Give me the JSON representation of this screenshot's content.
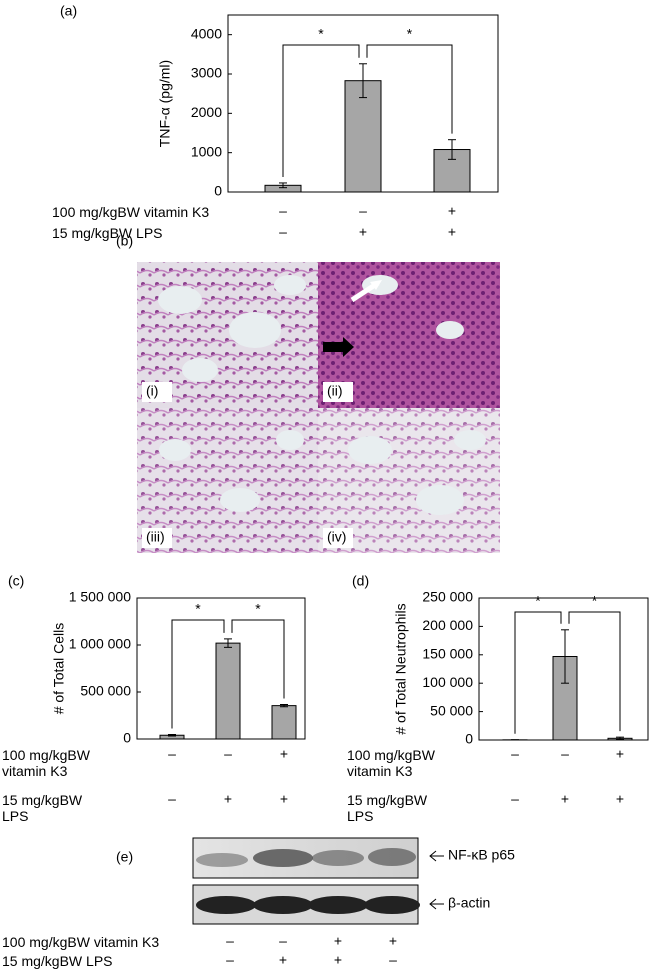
{
  "chart_data": [
    {
      "type": "bar",
      "panel": "(a)",
      "y_label": "TNF-α (pg/ml)",
      "color": "#a6a6a6",
      "values": [
        170,
        2830,
        1080
      ],
      "errors": [
        60,
        430,
        250
      ],
      "ylim": [
        0,
        4500
      ],
      "yticks": [
        0,
        1000,
        2000,
        3000,
        4000
      ],
      "annotations": [
        "*",
        "*"
      ],
      "treatments": [
        {
          "label": "100 mg/kgBW vitamin K3",
          "signs": [
            "–",
            "–",
            "+"
          ]
        },
        {
          "label": "15 mg/kgBW LPS",
          "signs": [
            "–",
            "+",
            "+"
          ]
        }
      ]
    },
    {
      "type": "bar",
      "panel": "(c)",
      "y_label": "# of Total Cells",
      "color": "#a6a6a6",
      "values": [
        40000,
        1020000,
        355000
      ],
      "errors": [
        8000,
        45000,
        12000
      ],
      "ylim": [
        0,
        1500000
      ],
      "yticks": [
        0,
        {
          "value": 500000,
          "label": "500 000"
        },
        {
          "value": 1000000,
          "label": "1 000 000"
        },
        {
          "value": 1500000,
          "label": "1 500 000"
        }
      ],
      "annotations": [
        "*",
        "*"
      ],
      "treatments": [
        {
          "label": "100 mg/kgBW vitamin K3",
          "signs": [
            "–",
            "–",
            "+"
          ]
        },
        {
          "label": "15 mg/kgBW LPS",
          "signs": [
            "–",
            "+",
            "+"
          ]
        }
      ]
    },
    {
      "type": "bar",
      "panel": "(d)",
      "y_label": "# of Total Neutrophils",
      "color": "#a6a6a6",
      "values": [
        300,
        147000,
        3000
      ],
      "errors": [
        200,
        47000,
        2000
      ],
      "ylim": [
        0,
        250000
      ],
      "yticks": [
        0,
        {
          "value": 50000,
          "label": "50 000"
        },
        {
          "value": 100000,
          "label": "100 000"
        },
        {
          "value": 150000,
          "label": "150 000"
        },
        {
          "value": 200000,
          "label": "200 000"
        },
        {
          "value": 250000,
          "label": "250 000"
        }
      ],
      "annotations": [
        "*",
        "*"
      ],
      "treatments": [
        {
          "label": "100 mg/kgBW vitamin K3",
          "signs": [
            "–",
            "–",
            "+"
          ]
        },
        {
          "label": "15 mg/kgBW LPS",
          "signs": [
            "–",
            "+",
            "+"
          ]
        }
      ]
    }
  ],
  "histology": {
    "panel": "(b)",
    "labels": [
      "(i)",
      "(ii)",
      "(iii)",
      "(iv)"
    ]
  },
  "western_blot": {
    "panel": "(e)",
    "bands": [
      "NF-κB p65",
      "β-actin"
    ],
    "treatments": [
      {
        "label": "100 mg/kgBW vitamin K3",
        "signs": [
          "–",
          "–",
          "+",
          "+"
        ]
      },
      {
        "label": "15 mg/kgBW LPS",
        "signs": [
          "–",
          "+",
          "+",
          "–"
        ]
      }
    ]
  }
}
